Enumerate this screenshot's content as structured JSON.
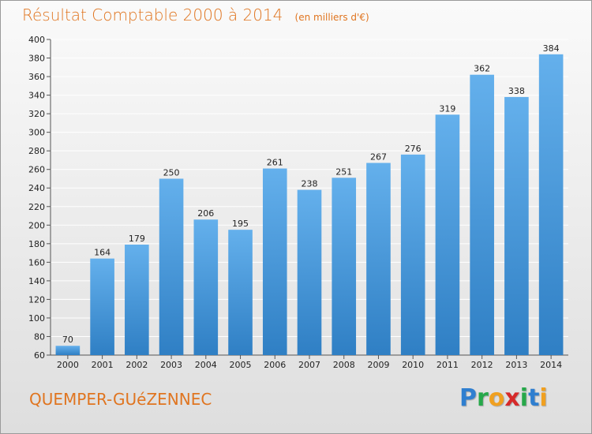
{
  "header": {
    "title": "Résultat Comptable 2000 à 2014",
    "unit": "(en milliers d'€)"
  },
  "footer": {
    "town": "QUEMPER-GUéZENNEC",
    "logo": "Proxiti"
  },
  "colors": {
    "title": "#e07520",
    "bar_top": "#64b0ec",
    "bar_bottom": "#2f7fc4",
    "grid": "#ffffff"
  },
  "chart_data": {
    "type": "bar",
    "title": "Résultat Comptable 2000 à 2014",
    "subtitle": "(en milliers d'€)",
    "xlabel": "",
    "ylabel": "",
    "categories": [
      "2000",
      "2001",
      "2002",
      "2003",
      "2004",
      "2005",
      "2006",
      "2007",
      "2008",
      "2009",
      "2010",
      "2011",
      "2012",
      "2013",
      "2014"
    ],
    "values": [
      70,
      164,
      179,
      250,
      206,
      195,
      261,
      238,
      251,
      267,
      276,
      319,
      362,
      338,
      384
    ],
    "ylim": [
      60,
      400
    ],
    "yticks": [
      60,
      80,
      100,
      120,
      140,
      160,
      180,
      200,
      220,
      240,
      260,
      280,
      300,
      320,
      340,
      360,
      380,
      400
    ],
    "grid": true,
    "legend": "none"
  }
}
